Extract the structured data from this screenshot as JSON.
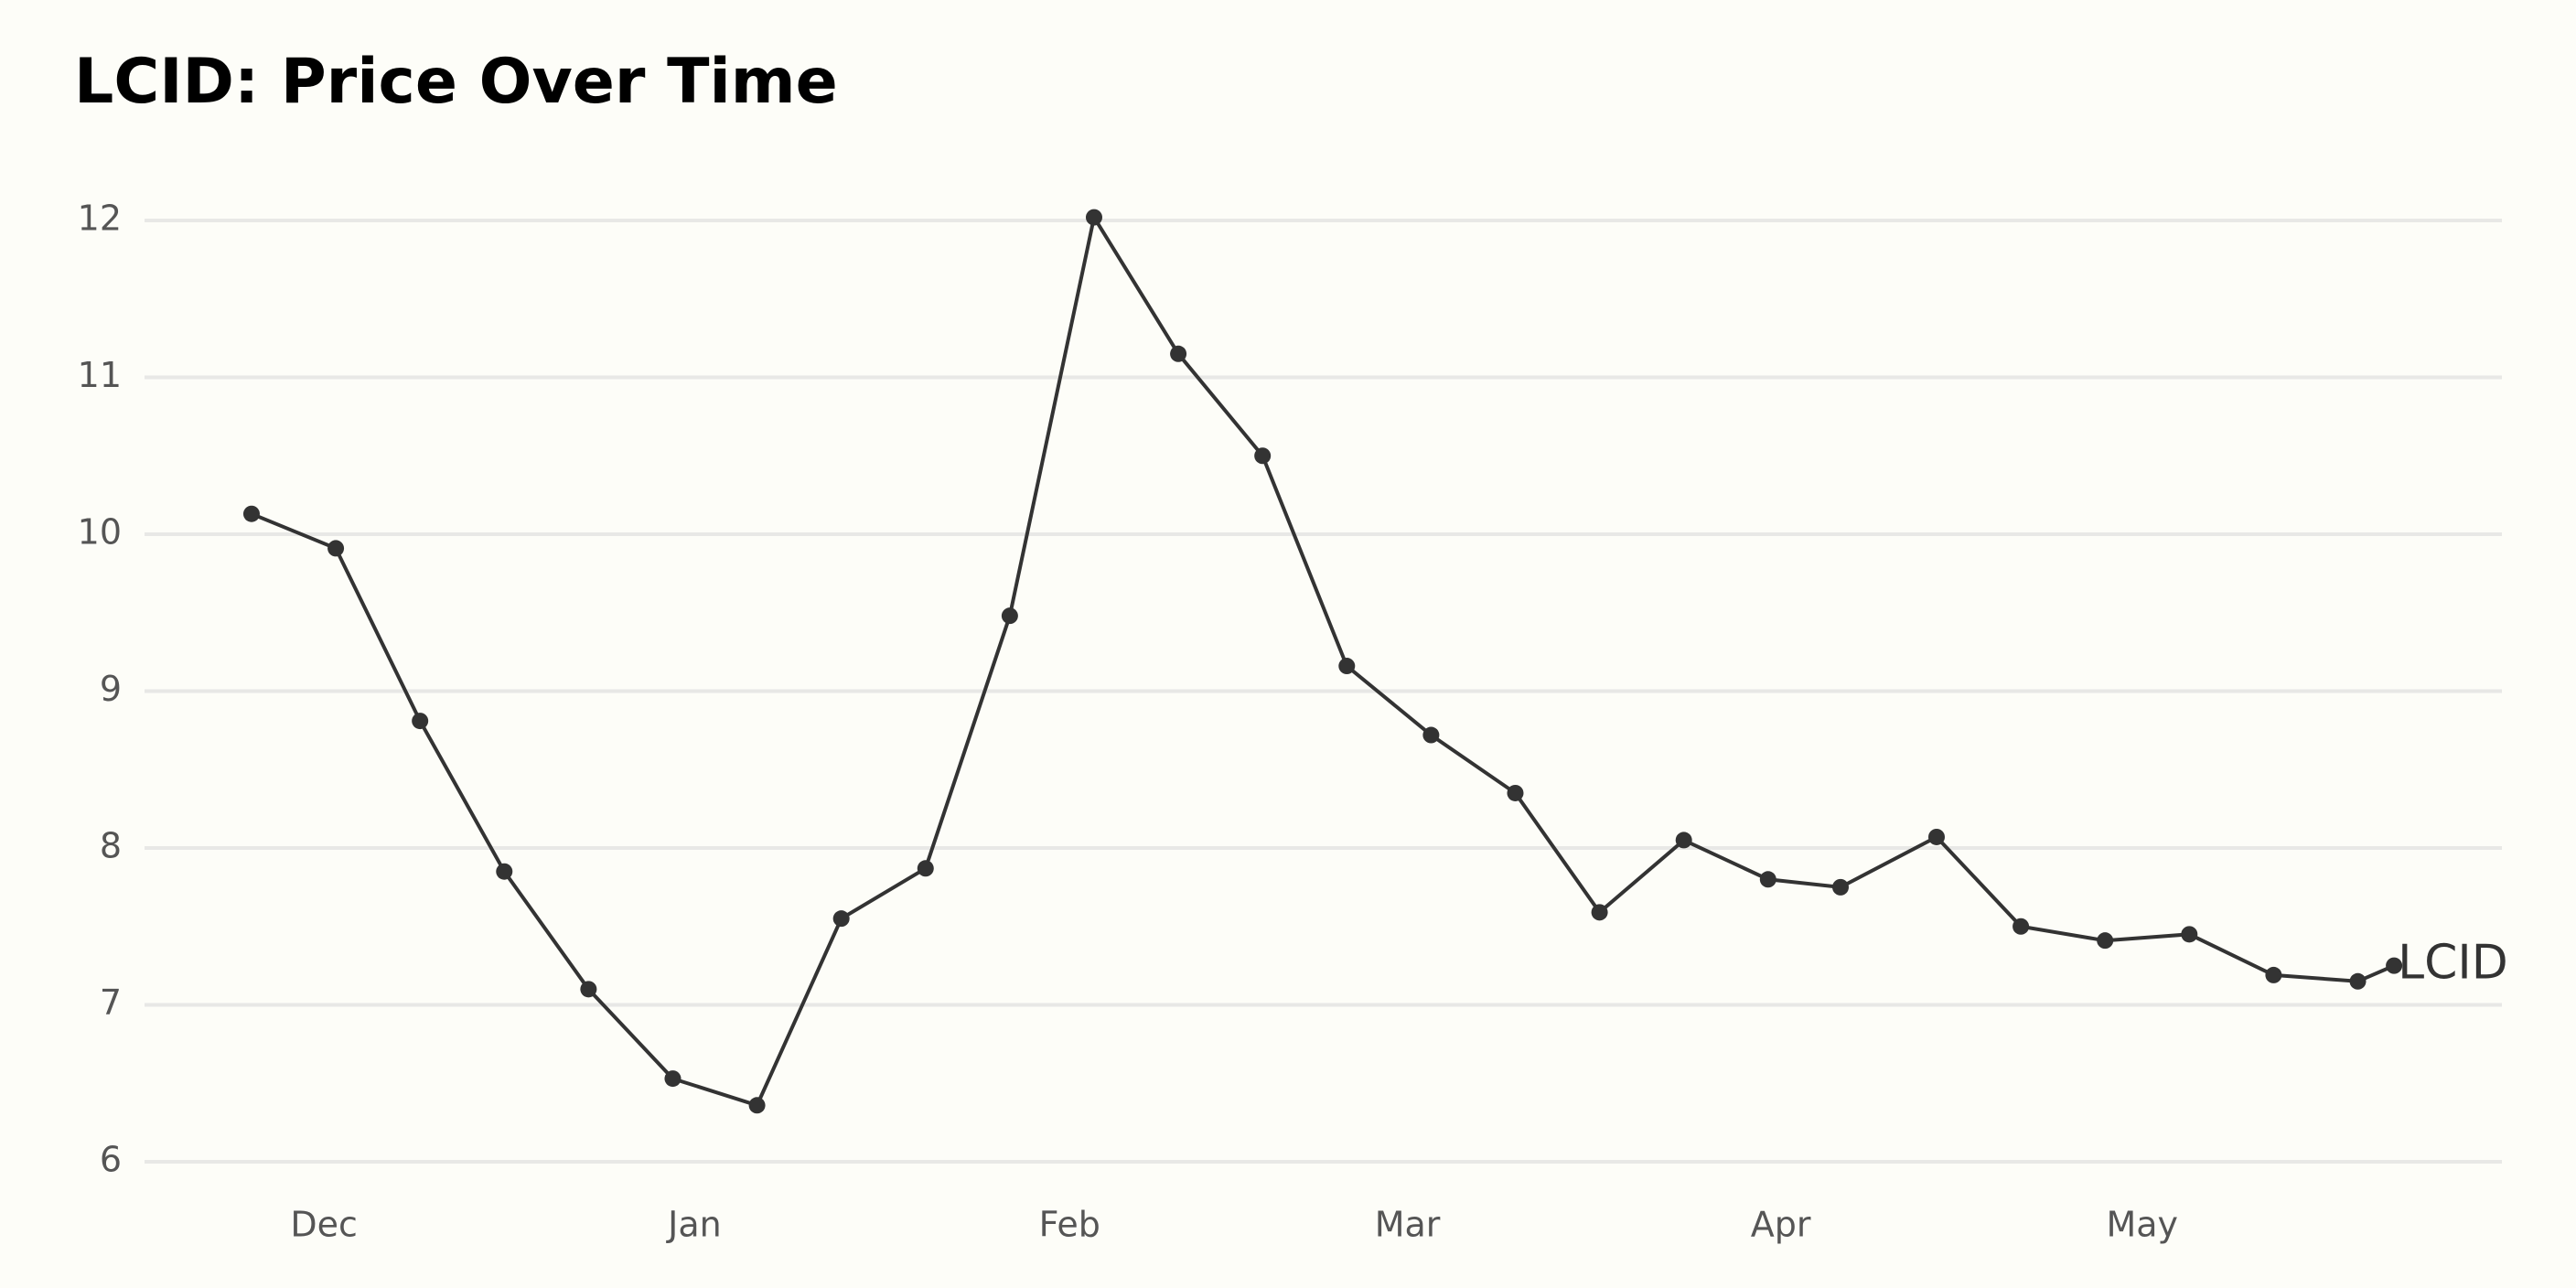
{
  "chart_data": {
    "type": "line",
    "title": "LCID: Price Over Time",
    "x": [
      0,
      1,
      2,
      3,
      4,
      5,
      6,
      7,
      8,
      9,
      10,
      11,
      12,
      13,
      14,
      15,
      16,
      17,
      18,
      18.86,
      20,
      21,
      22,
      23,
      24,
      25,
      25.43
    ],
    "series": [
      {
        "name": "LCID",
        "color": "#333333",
        "values": [
          10.13,
          9.91,
          8.81,
          7.85,
          7.1,
          6.53,
          6.36,
          7.55,
          7.87,
          9.48,
          12.02,
          11.15,
          10.5,
          9.16,
          8.72,
          8.35,
          7.59,
          8.05,
          7.8,
          7.75,
          8.07,
          7.5,
          7.41,
          7.45,
          7.19,
          7.15,
          7.25
        ]
      }
    ],
    "xlim": [
      -1.27,
      26.71
    ],
    "xticks": [
      {
        "value": 0.86,
        "label": "Dec"
      },
      {
        "value": 5.26,
        "label": "Jan"
      },
      {
        "value": 9.71,
        "label": "Feb"
      },
      {
        "value": 13.72,
        "label": "Mar"
      },
      {
        "value": 18.15,
        "label": "Apr"
      },
      {
        "value": 22.44,
        "label": "May"
      }
    ],
    "ylim": [
      6,
      12
    ],
    "yticks": [
      6,
      7,
      8,
      9,
      10,
      11,
      12
    ],
    "grid": true
  }
}
